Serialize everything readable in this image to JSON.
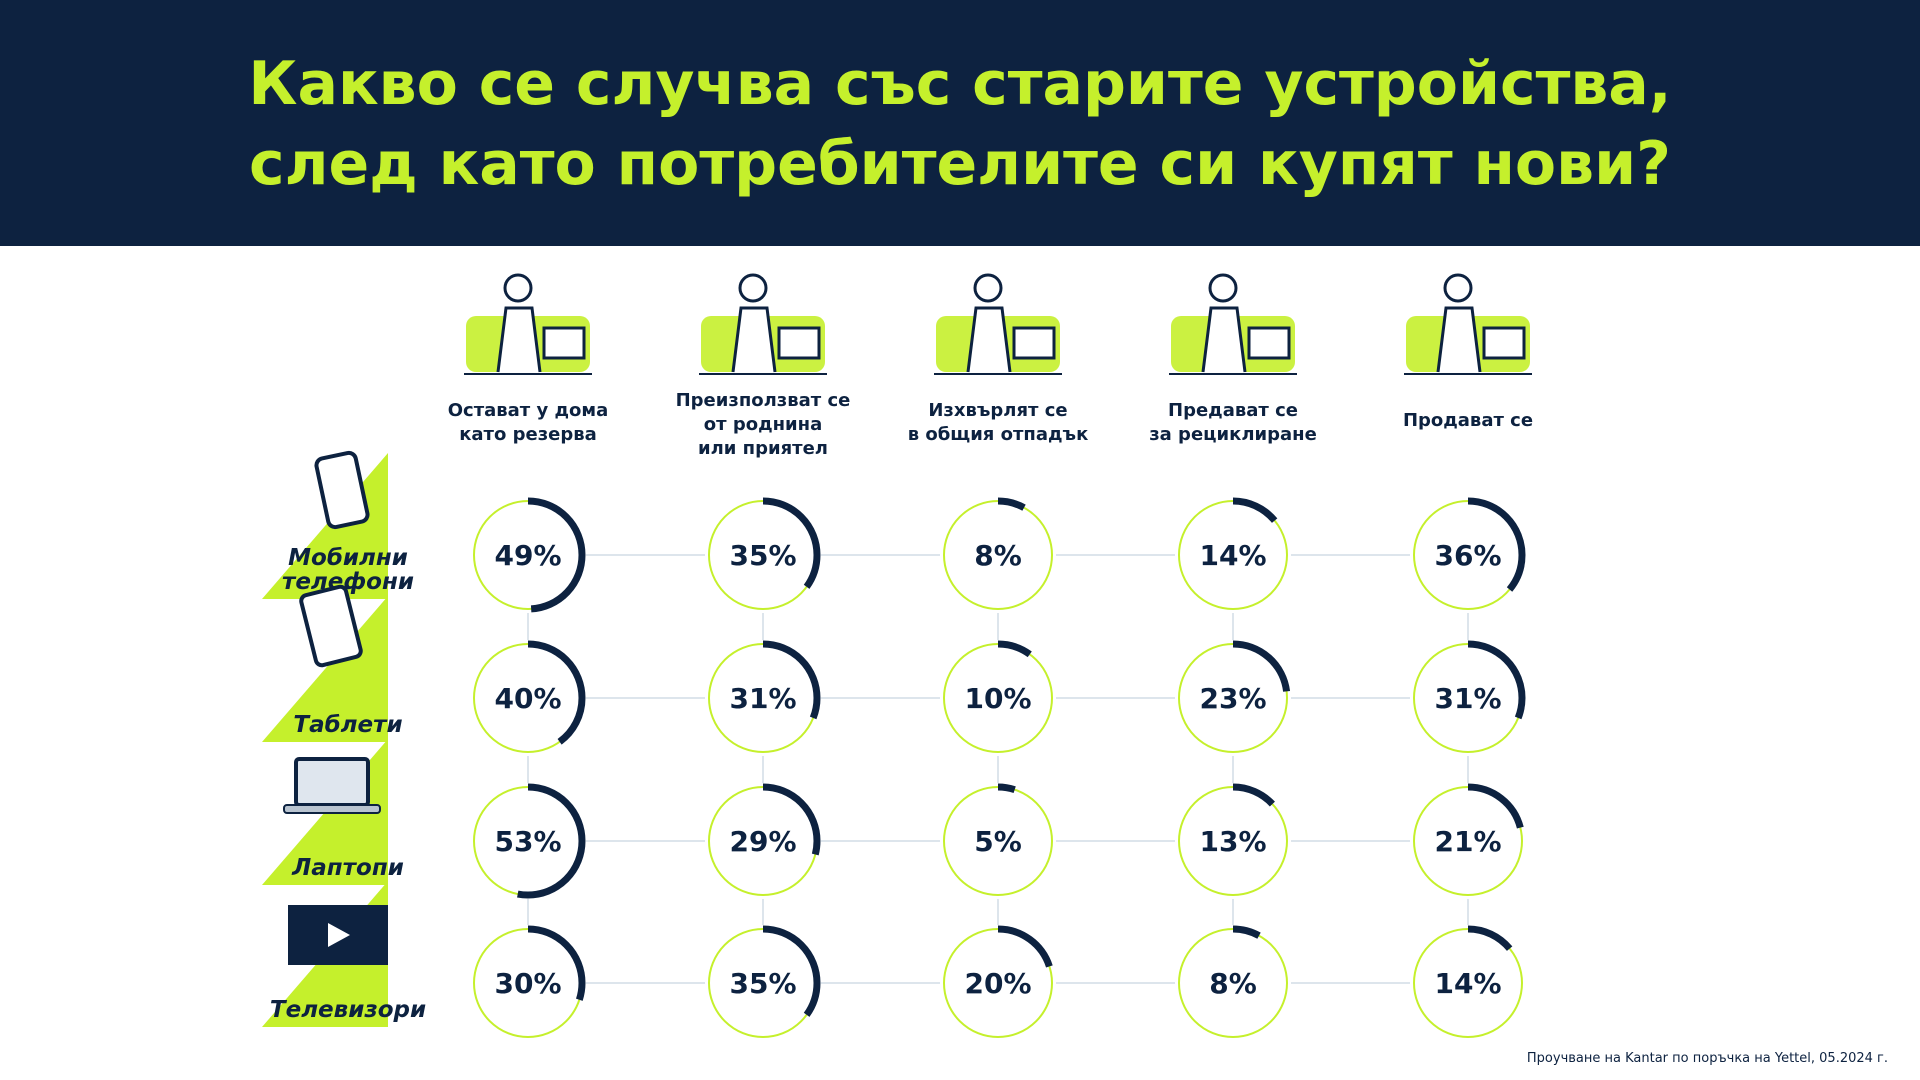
{
  "header": {
    "title_line1": "Какво се случва със старите устройства,",
    "title_line2": "след като потребителите си купят нови?"
  },
  "colors": {
    "navy": "#0d2240",
    "lime": "#c5f02c",
    "ring_track": "#c5f02c",
    "ring_fill": "#0d2240",
    "connector": "#dde5ec"
  },
  "icons": {
    "columns": [
      "home-office-person-icon",
      "family-sharing-icon",
      "trash-bin-icon",
      "recycling-box-person-icon",
      "shopping-person-icon"
    ],
    "rows": [
      "mobile-phone-icon",
      "tablet-icon",
      "laptop-icon",
      "tv-play-icon"
    ]
  },
  "chart_data": {
    "type": "table",
    "columns": [
      [
        "Остават у дома",
        "като резерва"
      ],
      [
        "Преизползват се",
        "от роднина",
        "или приятел"
      ],
      [
        "Изхвърлят се",
        "в общия отпадък"
      ],
      [
        "Предават се",
        "за рециклиране"
      ],
      [
        "Продават се"
      ]
    ],
    "rows": [
      [
        "Мобилни",
        "телефони"
      ],
      [
        "Таблети"
      ],
      [
        "Лаптопи"
      ],
      [
        "Телевизори"
      ]
    ],
    "values": [
      [
        49,
        35,
        8,
        14,
        36
      ],
      [
        40,
        31,
        10,
        23,
        31
      ],
      [
        53,
        29,
        5,
        13,
        21
      ],
      [
        30,
        35,
        20,
        8,
        14
      ]
    ],
    "labels": [
      [
        "49%",
        "35%",
        "8%",
        "14%",
        "36%"
      ],
      [
        "40%",
        "31%",
        "10%",
        "23%",
        "31%"
      ],
      [
        "53%",
        "29%",
        "5%",
        "13%",
        "21%"
      ],
      [
        "30%",
        "35%",
        "20%",
        "8%",
        "14%"
      ]
    ],
    "unit": "%"
  },
  "footer": {
    "source": "Проучване на Kantar по поръчка на Yettel, 05.2024 г."
  }
}
